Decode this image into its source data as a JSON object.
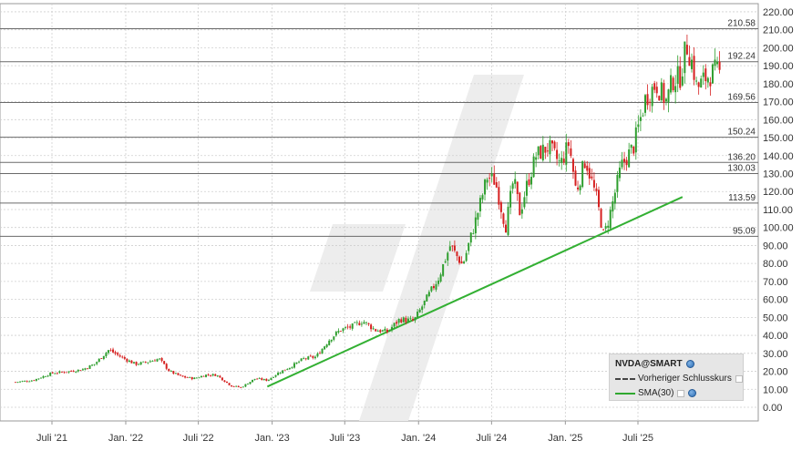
{
  "chart_data": {
    "type": "candlestick",
    "symbol": "NVDA@SMART",
    "y_ticks": [
      "0.00",
      "10.00",
      "20.00",
      "30.00",
      "40.00",
      "50.00",
      "60.00",
      "70.00",
      "80.00",
      "90.00",
      "100.00",
      "110.00",
      "120.00",
      "130.00",
      "140.00",
      "150.00",
      "160.00",
      "170.00",
      "180.00",
      "190.00",
      "200.00",
      "210.00",
      "220.00"
    ],
    "ylim": [
      0,
      220
    ],
    "x_ticks": [
      {
        "label": "Juli '21",
        "date": "2021-07"
      },
      {
        "label": "Jan. '22",
        "date": "2022-01"
      },
      {
        "label": "Juli '22",
        "date": "2022-07"
      },
      {
        "label": "Jan. '23",
        "date": "2023-01"
      },
      {
        "label": "Juli '23",
        "date": "2023-07"
      },
      {
        "label": "Jan. '24",
        "date": "2024-01"
      },
      {
        "label": "Juli '24",
        "date": "2024-07"
      },
      {
        "label": "Jan. '25",
        "date": "2025-01"
      },
      {
        "label": "Juli '25",
        "date": "2025-07"
      }
    ],
    "levels": [
      {
        "label": "210.58",
        "value": 210.58
      },
      {
        "label": "192.24",
        "value": 192.24
      },
      {
        "label": "169.56",
        "value": 169.56
      },
      {
        "label": "150.24",
        "value": 150.24
      },
      {
        "label": "136.20",
        "value": 136.2
      },
      {
        "label": "130.03",
        "value": 130.03
      },
      {
        "label": "113.59",
        "value": 113.59
      },
      {
        "label": "95.09",
        "value": 95.09
      }
    ],
    "trendline": {
      "start": [
        "2022-12-20",
        11.5
      ],
      "end": [
        "2025-10-20",
        117
      ]
    },
    "price_path": [
      [
        "2021-04-01",
        14
      ],
      [
        "2021-05-15",
        15
      ],
      [
        "2021-07-01",
        19
      ],
      [
        "2021-08-15",
        20
      ],
      [
        "2021-09-15",
        21
      ],
      [
        "2021-10-15",
        24
      ],
      [
        "2021-11-20",
        32
      ],
      [
        "2021-12-20",
        28
      ],
      [
        "2022-01-25",
        24
      ],
      [
        "2022-02-20",
        25
      ],
      [
        "2022-03-25",
        27
      ],
      [
        "2022-04-20",
        20
      ],
      [
        "2022-05-20",
        17
      ],
      [
        "2022-06-20",
        16
      ],
      [
        "2022-07-20",
        18
      ],
      [
        "2022-08-15",
        18
      ],
      [
        "2022-09-20",
        12
      ],
      [
        "2022-10-15",
        11
      ],
      [
        "2022-11-20",
        16
      ],
      [
        "2022-12-20",
        15
      ],
      [
        "2023-01-15",
        19
      ],
      [
        "2023-02-20",
        23
      ],
      [
        "2023-03-20",
        27
      ],
      [
        "2023-04-20",
        28
      ],
      [
        "2023-05-25",
        38
      ],
      [
        "2023-06-20",
        43
      ],
      [
        "2023-07-20",
        45
      ],
      [
        "2023-08-15",
        48
      ],
      [
        "2023-09-15",
        43
      ],
      [
        "2023-10-15",
        42
      ],
      [
        "2023-11-15",
        49
      ],
      [
        "2023-12-20",
        48
      ],
      [
        "2024-01-20",
        60
      ],
      [
        "2024-02-20",
        72
      ],
      [
        "2024-03-20",
        90
      ],
      [
        "2024-04-20",
        79
      ],
      [
        "2024-05-25",
        106
      ],
      [
        "2024-06-20",
        128
      ],
      [
        "2024-07-10",
        126
      ],
      [
        "2024-08-05",
        100
      ],
      [
        "2024-08-25",
        127
      ],
      [
        "2024-09-10",
        108
      ],
      [
        "2024-09-25",
        122
      ],
      [
        "2024-10-20",
        140
      ],
      [
        "2024-11-20",
        145
      ],
      [
        "2024-12-20",
        135
      ],
      [
        "2025-01-10",
        147
      ],
      [
        "2025-01-28",
        120
      ],
      [
        "2025-02-20",
        138
      ],
      [
        "2025-03-20",
        116
      ],
      [
        "2025-04-07",
        95
      ],
      [
        "2025-04-25",
        110
      ],
      [
        "2025-05-20",
        134
      ],
      [
        "2025-06-20",
        145
      ],
      [
        "2025-07-20",
        172
      ],
      [
        "2025-08-15",
        180
      ],
      [
        "2025-09-10",
        170
      ],
      [
        "2025-09-25",
        182
      ],
      [
        "2025-10-15",
        184
      ],
      [
        "2025-10-30",
        202
      ],
      [
        "2025-11-15",
        190
      ],
      [
        "2025-11-25",
        177
      ],
      [
        "2025-12-15",
        183
      ],
      [
        "2026-01-10",
        187
      ],
      [
        "2026-01-25",
        185
      ]
    ],
    "grid": true,
    "watermark": "flag-logo"
  },
  "legend": {
    "symbol": "NVDA@SMART",
    "prev_close": "Vorheriger Schlusskurs",
    "sma": "SMA(30)",
    "colors": {
      "prev_close": "#444444",
      "sma": "#2fa82f"
    }
  },
  "colors": {
    "up": "#2e9e2e",
    "down": "#d62020",
    "trend": "#33b033",
    "level": "#6a6a6a",
    "grid": "#cfcfcf"
  }
}
